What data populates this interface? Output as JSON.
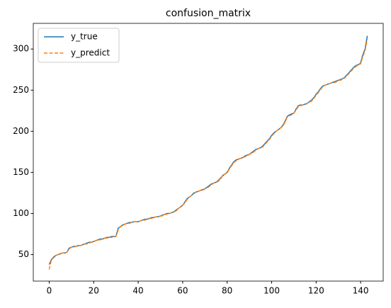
{
  "chart_data": {
    "type": "line",
    "title": "confusion_matrix",
    "x": [
      0,
      1,
      2,
      3,
      4,
      5,
      6,
      7,
      8,
      9,
      10,
      11,
      12,
      13,
      14,
      15,
      16,
      17,
      18,
      19,
      20,
      21,
      22,
      23,
      24,
      25,
      26,
      27,
      28,
      29,
      30,
      31,
      32,
      33,
      34,
      35,
      36,
      37,
      38,
      39,
      40,
      41,
      42,
      43,
      44,
      45,
      46,
      47,
      48,
      49,
      50,
      51,
      52,
      53,
      54,
      55,
      56,
      57,
      58,
      59,
      60,
      61,
      62,
      63,
      64,
      65,
      66,
      67,
      68,
      69,
      70,
      71,
      72,
      73,
      74,
      75,
      76,
      77,
      78,
      79,
      80,
      81,
      82,
      83,
      84,
      85,
      86,
      87,
      88,
      89,
      90,
      91,
      92,
      93,
      94,
      95,
      96,
      97,
      98,
      99,
      100,
      101,
      102,
      103,
      104,
      105,
      106,
      107,
      108,
      109,
      110,
      111,
      112,
      113,
      114,
      115,
      116,
      117,
      118,
      119,
      120,
      121,
      122,
      123,
      124,
      125,
      126,
      127,
      128,
      129,
      130,
      131,
      132,
      133,
      134,
      135,
      136,
      137,
      138,
      139,
      140,
      141,
      142,
      143
    ],
    "series": [
      {
        "name": "y_true",
        "color": "#1f77b4",
        "linestyle": "solid",
        "values": [
          38,
          44,
          47,
          49,
          50,
          51,
          52,
          52,
          53,
          58,
          59,
          60,
          60,
          61,
          61,
          62,
          63,
          64,
          65,
          65,
          66,
          67,
          68,
          69,
          69,
          70,
          71,
          71,
          72,
          72,
          72,
          82,
          84,
          86,
          87,
          88,
          89,
          89,
          90,
          90,
          90,
          91,
          92,
          93,
          93,
          94,
          95,
          95,
          96,
          96,
          97,
          98,
          99,
          100,
          100,
          101,
          102,
          104,
          106,
          108,
          110,
          114,
          118,
          120,
          122,
          125,
          126,
          127,
          128,
          129,
          130,
          132,
          134,
          136,
          137,
          138,
          140,
          143,
          146,
          148,
          150,
          155,
          159,
          163,
          165,
          166,
          167,
          168,
          170,
          171,
          172,
          174,
          176,
          178,
          179,
          180,
          182,
          185,
          188,
          191,
          195,
          198,
          200,
          202,
          204,
          207,
          212,
          218,
          220,
          221,
          222,
          227,
          231,
          232,
          232,
          233,
          234,
          236,
          238,
          241,
          245,
          248,
          252,
          255,
          256,
          257,
          258,
          259,
          260,
          261,
          262,
          263,
          264,
          266,
          269,
          272,
          275,
          278,
          280,
          281,
          283,
          293,
          300,
          316
        ]
      },
      {
        "name": "y_predict",
        "color": "#ff7f0e",
        "linestyle": "dashed",
        "values": [
          32,
          44,
          46,
          49,
          50,
          51,
          52,
          52,
          53,
          57,
          59,
          59,
          60,
          61,
          61,
          62,
          63,
          63,
          64,
          65,
          66,
          67,
          68,
          68,
          69,
          70,
          70,
          71,
          71,
          72,
          72,
          80,
          84,
          85,
          87,
          88,
          88,
          89,
          90,
          90,
          90,
          91,
          92,
          92,
          93,
          94,
          94,
          95,
          96,
          96,
          97,
          97,
          99,
          99,
          100,
          101,
          102,
          103,
          106,
          108,
          110,
          113,
          117,
          120,
          122,
          124,
          126,
          127,
          128,
          128,
          130,
          131,
          133,
          135,
          137,
          138,
          139,
          142,
          146,
          148,
          150,
          154,
          158,
          162,
          164,
          166,
          167,
          168,
          169,
          170,
          172,
          173,
          175,
          177,
          179,
          180,
          181,
          184,
          187,
          190,
          194,
          197,
          200,
          202,
          204,
          206,
          211,
          217,
          219,
          220,
          222,
          226,
          230,
          231,
          232,
          232,
          234,
          235,
          237,
          240,
          244,
          247,
          251,
          254,
          256,
          257,
          258,
          259,
          259,
          260,
          262,
          262,
          264,
          265,
          268,
          271,
          274,
          277,
          279,
          281,
          282,
          291,
          298,
          312
        ]
      }
    ],
    "xlim": [
      -7.15,
      150.15
    ],
    "ylim": [
      17.8,
      331.2
    ],
    "xticks": [
      0,
      20,
      40,
      60,
      80,
      100,
      120,
      140
    ],
    "yticks": [
      50,
      100,
      150,
      200,
      250,
      300
    ],
    "grid": false,
    "legend": "upper-left"
  }
}
